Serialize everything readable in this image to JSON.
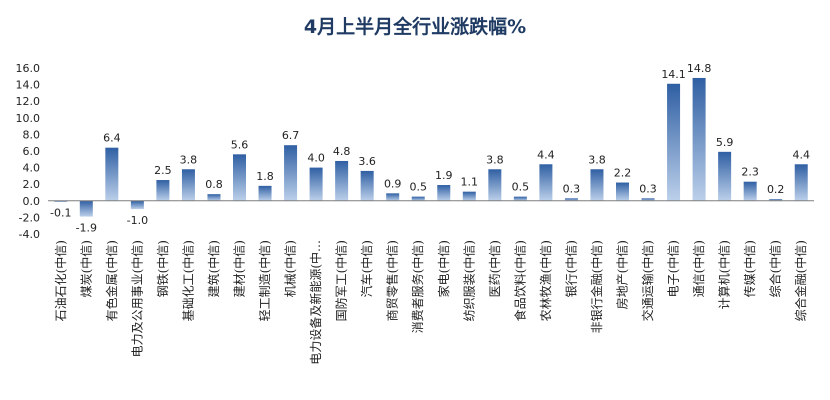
{
  "chart_data": {
    "type": "bar",
    "title": "4月上半月全行业涨跌幅%",
    "xlabel": "",
    "ylabel": "",
    "ylim": [
      -4.0,
      16.0
    ],
    "yticks": [
      "16.0",
      "14.0",
      "12.0",
      "10.0",
      "8.0",
      "6.0",
      "4.0",
      "2.0",
      "0.0",
      "-2.0",
      "-4.0"
    ],
    "categories": [
      "石油石化(中信)",
      "煤炭(中信)",
      "有色金属(中信)",
      "电力及公用事业(中信)",
      "钢铁(中信)",
      "基础化工(中信)",
      "建筑(中信)",
      "建材(中信)",
      "轻工制造(中信)",
      "机械(中信)",
      "电力设备及新能源(中…",
      "国防军工(中信)",
      "汽车(中信)",
      "商贸零售(中信)",
      "消费者服务(中信)",
      "家电(中信)",
      "纺织服装(中信)",
      "医药(中信)",
      "食品饮料(中信)",
      "农林牧渔(中信)",
      "银行(中信)",
      "非银行金融(中信)",
      "房地产(中信)",
      "交通运输(中信)",
      "电子(中信)",
      "通信(中信)",
      "计算机(中信)",
      "传媒(中信)",
      "综合(中信)",
      "综合金融(中信)"
    ],
    "values": [
      -0.1,
      -1.9,
      6.4,
      -1.0,
      2.5,
      3.8,
      0.8,
      5.6,
      1.8,
      6.7,
      4.0,
      4.8,
      3.6,
      0.9,
      0.5,
      1.9,
      1.1,
      3.8,
      0.5,
      4.4,
      0.3,
      3.8,
      2.2,
      0.3,
      14.1,
      14.8,
      5.9,
      2.3,
      0.2,
      4.4
    ],
    "value_labels": [
      "-0.1",
      "-1.9",
      "6.4",
      "-1.0",
      "2.5",
      "3.8",
      "0.8",
      "5.6",
      "1.8",
      "6.7",
      "4.0",
      "4.8",
      "3.6",
      "0.9",
      "0.5",
      "1.9",
      "1.1",
      "3.8",
      "0.5",
      "4.4",
      "0.3",
      "3.8",
      "2.2",
      "0.3",
      "14.1",
      "14.8",
      "5.9",
      "2.3",
      "0.2",
      "4.4"
    ],
    "colors": {
      "bar_top": "#2f5fa3",
      "bar_bottom": "#bcd0ea",
      "axis": "#7f7f7f",
      "title": "#1f3b63"
    },
    "grid": false,
    "legend": "none"
  }
}
